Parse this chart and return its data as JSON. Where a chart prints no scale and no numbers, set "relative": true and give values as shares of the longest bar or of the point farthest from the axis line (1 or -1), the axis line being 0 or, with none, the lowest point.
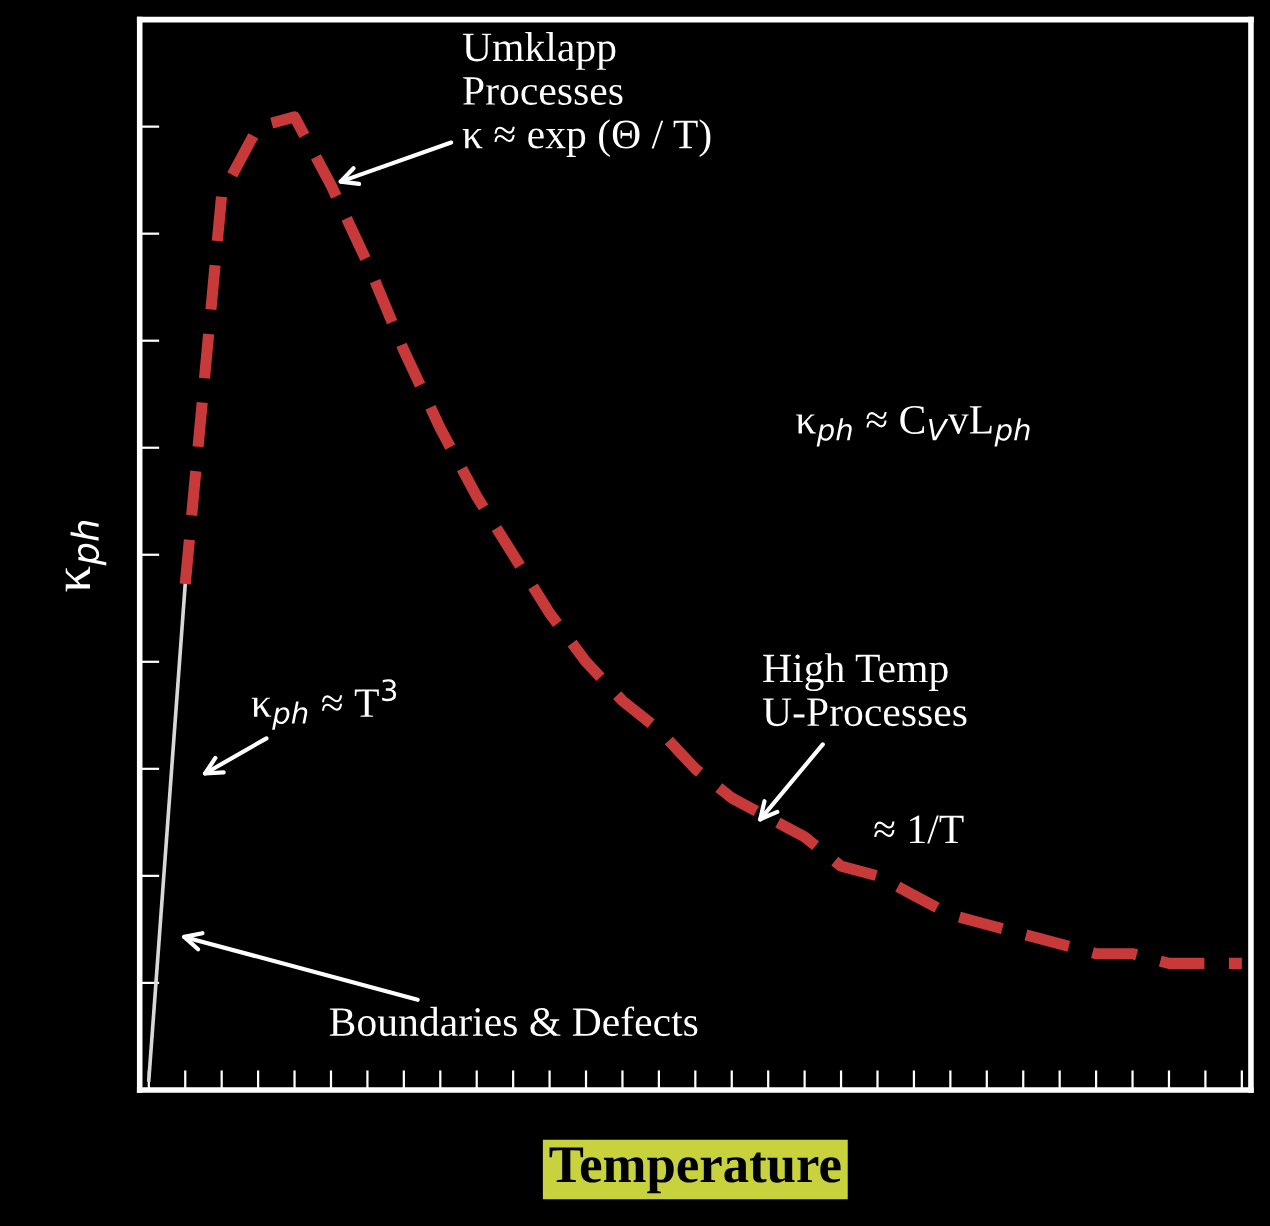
{
  "chart_data": {
    "type": "line",
    "relative": true,
    "xlabel": "Temperature",
    "ylabel": "κ$_{ph}$",
    "tick_labels": false,
    "grid": false,
    "legend": false,
    "marker": "none",
    "categories": [
      null,
      null,
      null,
      null,
      null,
      null,
      null,
      null,
      null,
      null,
      null,
      null,
      null,
      null,
      null,
      null,
      null,
      null,
      null,
      null,
      null,
      null,
      null,
      null,
      null,
      null,
      null,
      null,
      null,
      null,
      null
    ],
    "series": [
      {
        "color": "#d8d8d8",
        "line_style": "solid",
        "values": [
          0.01,
          0.52,
          null,
          null,
          null,
          null,
          null,
          null,
          null,
          null,
          null,
          null,
          null,
          null,
          null,
          null,
          null,
          null,
          null,
          null,
          null,
          null,
          null,
          null,
          null,
          null,
          null,
          null,
          null,
          null,
          null
        ]
      },
      {
        "color": "#c83a3a",
        "line_style": "dashed",
        "values": [
          null,
          0.52,
          0.92,
          0.99,
          1.0,
          0.93,
          0.85,
          0.76,
          0.68,
          0.61,
          0.55,
          0.49,
          0.44,
          0.4,
          0.37,
          0.33,
          0.3,
          0.28,
          0.26,
          0.23,
          0.22,
          0.2,
          0.18,
          0.17,
          0.16,
          0.15,
          0.14,
          0.14,
          0.13,
          0.13,
          0.13
        ]
      }
    ],
    "annotations": [
      "Umklapp\nProcesses\nκ ≈ exp (Θ / T)",
      "κ$_{ph}$ ≈ C$_{V}$vL$_{ph}$",
      "High Temp\nU-Processes",
      "≈ 1/T",
      "κ$_{ph}$ ≈ T$^{3}$",
      "Boundaries & Defects"
    ]
  }
}
